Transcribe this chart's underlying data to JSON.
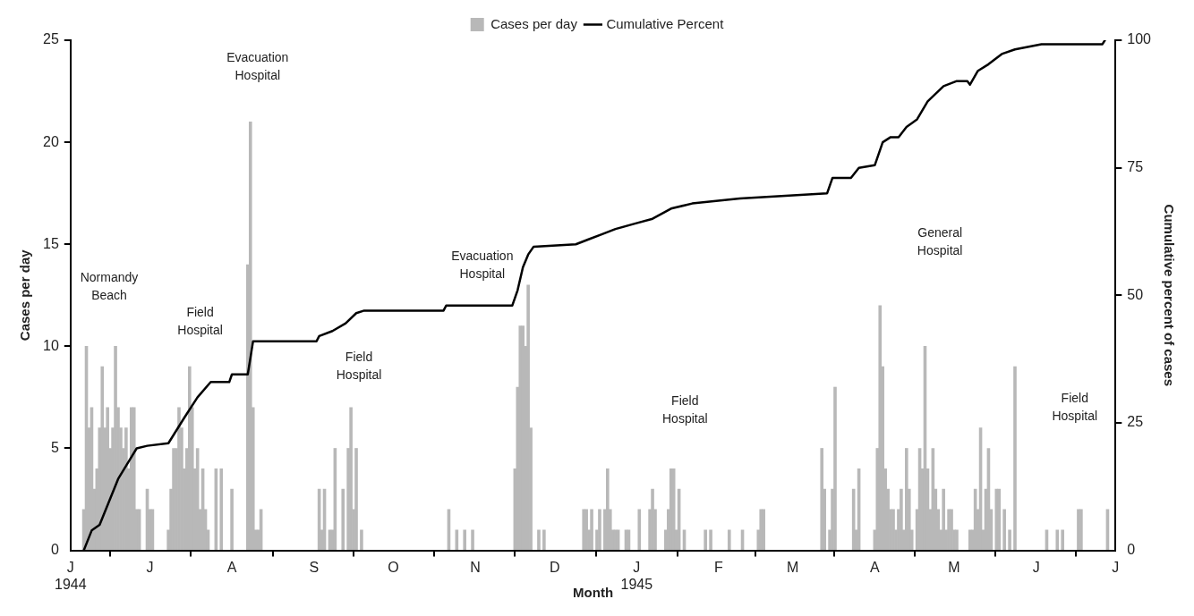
{
  "chart_data": {
    "type": "bar",
    "xlabel": "Month",
    "ylabel": "Cases per day",
    "y2label": "Cumulative percent of cases",
    "legend": "top",
    "grid": false,
    "xlim": [
      "1944-06-01",
      "1945-07-01"
    ],
    "xticks": [
      {
        "value": "1944-06-01",
        "label": "J\n1944"
      },
      {
        "value": "1944-07-01",
        "label": "J"
      },
      {
        "value": "1944-08-01",
        "label": "A"
      },
      {
        "value": "1944-09-01",
        "label": "S"
      },
      {
        "value": "1944-10-01",
        "label": "O"
      },
      {
        "value": "1944-11-01",
        "label": "N"
      },
      {
        "value": "1944-12-01",
        "label": "D"
      },
      {
        "value": "1945-01-01",
        "label": "J\n1945"
      },
      {
        "value": "1945-02-01",
        "label": "F"
      },
      {
        "value": "1945-03-01",
        "label": "M"
      },
      {
        "value": "1945-04-01",
        "label": "A"
      },
      {
        "value": "1945-05-01",
        "label": "M"
      },
      {
        "value": "1945-06-01",
        "label": "J"
      },
      {
        "value": "1945-07-01",
        "label": "J"
      }
    ],
    "ylim": [
      0,
      25
    ],
    "yticks": [
      0,
      5,
      10,
      15,
      20,
      25
    ],
    "y2lim": [
      0,
      100
    ],
    "y2ticks": [
      0,
      25,
      50,
      75,
      100
    ],
    "series": [
      {
        "name": "Cases per day",
        "color": "#b8b8b8",
        "x": [
          "1944-06-06",
          "1944-06-07",
          "1944-06-08",
          "1944-06-09",
          "1944-06-10",
          "1944-06-11",
          "1944-06-12",
          "1944-06-13",
          "1944-06-14",
          "1944-06-15",
          "1944-06-16",
          "1944-06-17",
          "1944-06-18",
          "1944-06-19",
          "1944-06-20",
          "1944-06-21",
          "1944-06-22",
          "1944-06-23",
          "1944-06-24",
          "1944-06-25",
          "1944-06-26",
          "1944-06-27",
          "1944-06-30",
          "1944-07-01",
          "1944-07-02",
          "1944-07-08",
          "1944-07-09",
          "1944-07-10",
          "1944-07-11",
          "1944-07-12",
          "1944-07-13",
          "1944-07-14",
          "1944-07-15",
          "1944-07-16",
          "1944-07-17",
          "1944-07-18",
          "1944-07-19",
          "1944-07-20",
          "1944-07-21",
          "1944-07-22",
          "1944-07-23",
          "1944-07-26",
          "1944-07-28",
          "1944-08-01",
          "1944-08-07",
          "1944-08-08",
          "1944-08-09",
          "1944-08-10",
          "1944-08-11",
          "1944-08-12",
          "1944-09-03",
          "1944-09-04",
          "1944-09-05",
          "1944-09-07",
          "1944-09-08",
          "1944-09-09",
          "1944-09-12",
          "1944-09-14",
          "1944-09-15",
          "1944-09-16",
          "1944-09-17",
          "1944-09-19",
          "1944-10-22",
          "1944-10-25",
          "1944-10-28",
          "1944-10-31",
          "1944-11-16",
          "1944-11-17",
          "1944-11-18",
          "1944-11-19",
          "1944-11-20",
          "1944-11-21",
          "1944-11-22",
          "1944-11-25",
          "1944-11-27",
          "1944-12-12",
          "1944-12-13",
          "1944-12-14",
          "1944-12-15",
          "1944-12-17",
          "1944-12-18",
          "1944-12-20",
          "1944-12-21",
          "1944-12-22",
          "1944-12-23",
          "1944-12-24",
          "1944-12-25",
          "1944-12-28",
          "1944-12-29",
          "1945-01-02",
          "1945-01-06",
          "1945-01-07",
          "1945-01-08",
          "1945-01-12",
          "1945-01-13",
          "1945-01-14",
          "1945-01-15",
          "1945-01-16",
          "1945-01-17",
          "1945-01-19",
          "1945-01-27",
          "1945-01-29",
          "1945-02-05",
          "1945-02-10",
          "1945-02-16",
          "1945-02-17",
          "1945-02-18",
          "1945-03-12",
          "1945-03-13",
          "1945-03-15",
          "1945-03-16",
          "1945-03-17",
          "1945-03-24",
          "1945-03-25",
          "1945-03-26",
          "1945-04-01",
          "1945-04-02",
          "1945-04-03",
          "1945-04-04",
          "1945-04-05",
          "1945-04-06",
          "1945-04-07",
          "1945-04-08",
          "1945-04-09",
          "1945-04-10",
          "1945-04-11",
          "1945-04-12",
          "1945-04-13",
          "1945-04-14",
          "1945-04-15",
          "1945-04-17",
          "1945-04-18",
          "1945-04-19",
          "1945-04-20",
          "1945-04-21",
          "1945-04-22",
          "1945-04-23",
          "1945-04-24",
          "1945-04-25",
          "1945-04-26",
          "1945-04-27",
          "1945-04-28",
          "1945-04-29",
          "1945-04-30",
          "1945-05-01",
          "1945-05-02",
          "1945-05-07",
          "1945-05-08",
          "1945-05-09",
          "1945-05-10",
          "1945-05-11",
          "1945-05-12",
          "1945-05-13",
          "1945-05-14",
          "1945-05-15",
          "1945-05-17",
          "1945-05-18",
          "1945-05-20",
          "1945-05-22",
          "1945-05-24",
          "1945-06-05",
          "1945-06-09",
          "1945-06-11",
          "1945-06-17",
          "1945-06-18",
          "1945-06-28"
        ],
        "values": [
          2,
          10,
          6,
          7,
          3,
          4,
          6,
          9,
          6,
          7,
          5,
          6,
          10,
          7,
          6,
          5,
          6,
          4,
          7,
          7,
          2,
          2,
          3,
          2,
          2,
          1,
          3,
          5,
          5,
          7,
          6,
          4,
          5,
          9,
          7,
          4,
          5,
          2,
          4,
          2,
          1,
          4,
          4,
          3,
          14,
          21,
          7,
          1,
          1,
          2,
          3,
          1,
          3,
          1,
          1,
          5,
          3,
          5,
          7,
          2,
          5,
          1,
          2,
          1,
          1,
          1,
          4,
          8,
          11,
          11,
          10,
          13,
          6,
          1,
          1,
          2,
          2,
          1,
          2,
          1,
          2,
          2,
          4,
          2,
          1,
          1,
          1,
          1,
          1,
          2,
          2,
          3,
          2,
          1,
          2,
          4,
          4,
          1,
          3,
          1,
          1,
          1,
          1,
          1,
          1,
          2,
          2,
          5,
          3,
          1,
          3,
          8,
          3,
          1,
          4,
          1,
          5,
          12,
          9,
          4,
          3,
          2,
          2,
          1,
          2,
          3,
          1,
          5,
          3,
          1,
          2,
          5,
          4,
          10,
          4,
          2,
          5,
          3,
          2,
          1,
          3,
          1,
          2,
          2,
          1,
          1,
          1,
          1,
          3,
          2,
          6,
          1,
          3,
          5,
          2,
          3,
          3,
          2,
          1,
          9,
          1,
          1,
          1,
          2,
          2,
          2
        ]
      },
      {
        "name": "Cumulative Percent",
        "type": "line",
        "axis": "y2",
        "color": "#000000",
        "x": [
          "1944-06-06",
          "1944-06-09",
          "1944-06-12",
          "1944-06-19",
          "1944-06-26",
          "1944-06-30",
          "1944-07-08",
          "1944-07-14",
          "1944-07-19",
          "1944-07-24",
          "1944-07-31",
          "1944-08-01",
          "1944-08-07",
          "1944-08-09",
          "1944-09-02",
          "1944-09-03",
          "1944-09-08",
          "1944-09-13",
          "1944-09-17",
          "1944-09-20",
          "1944-10-20",
          "1944-10-21",
          "1944-11-15",
          "1944-11-17",
          "1944-11-19",
          "1944-11-21",
          "1944-11-23",
          "1944-12-09",
          "1944-12-14",
          "1944-12-19",
          "1944-12-24",
          "1944-12-31",
          "1945-01-07",
          "1945-01-14",
          "1945-01-22",
          "1945-02-09",
          "1945-03-14",
          "1945-03-16",
          "1945-03-23",
          "1945-03-26",
          "1945-04-01",
          "1945-04-04",
          "1945-04-07",
          "1945-04-10",
          "1945-04-13",
          "1945-04-17",
          "1945-04-21",
          "1945-04-27",
          "1945-05-02",
          "1945-05-06",
          "1945-05-07",
          "1945-05-10",
          "1945-05-14",
          "1945-05-19",
          "1945-05-24",
          "1945-06-03",
          "1945-06-26",
          "1945-06-27"
        ],
        "values": [
          0,
          3.9,
          5,
          14,
          20,
          20.5,
          21,
          26,
          30,
          33,
          33,
          34.5,
          34.5,
          41,
          41,
          42,
          43,
          44.5,
          46.5,
          47,
          47,
          48,
          48,
          51,
          55.5,
          58,
          59.5,
          60,
          61,
          62,
          63,
          64,
          65,
          67,
          68,
          69,
          70,
          73,
          73,
          75,
          75.5,
          80,
          81,
          81,
          83,
          84.5,
          88,
          91,
          92,
          92,
          91.3,
          94,
          95.3,
          97.3,
          98.2,
          99.2,
          99.2,
          100
        ]
      }
    ],
    "annotations": [
      "Normandy Beach",
      "Field Hospital",
      "Evacuation Hospital",
      "Field Hospital",
      "Evacuation Hospital",
      "Field Hospital",
      "General Hospital",
      "Field Hospital"
    ]
  }
}
